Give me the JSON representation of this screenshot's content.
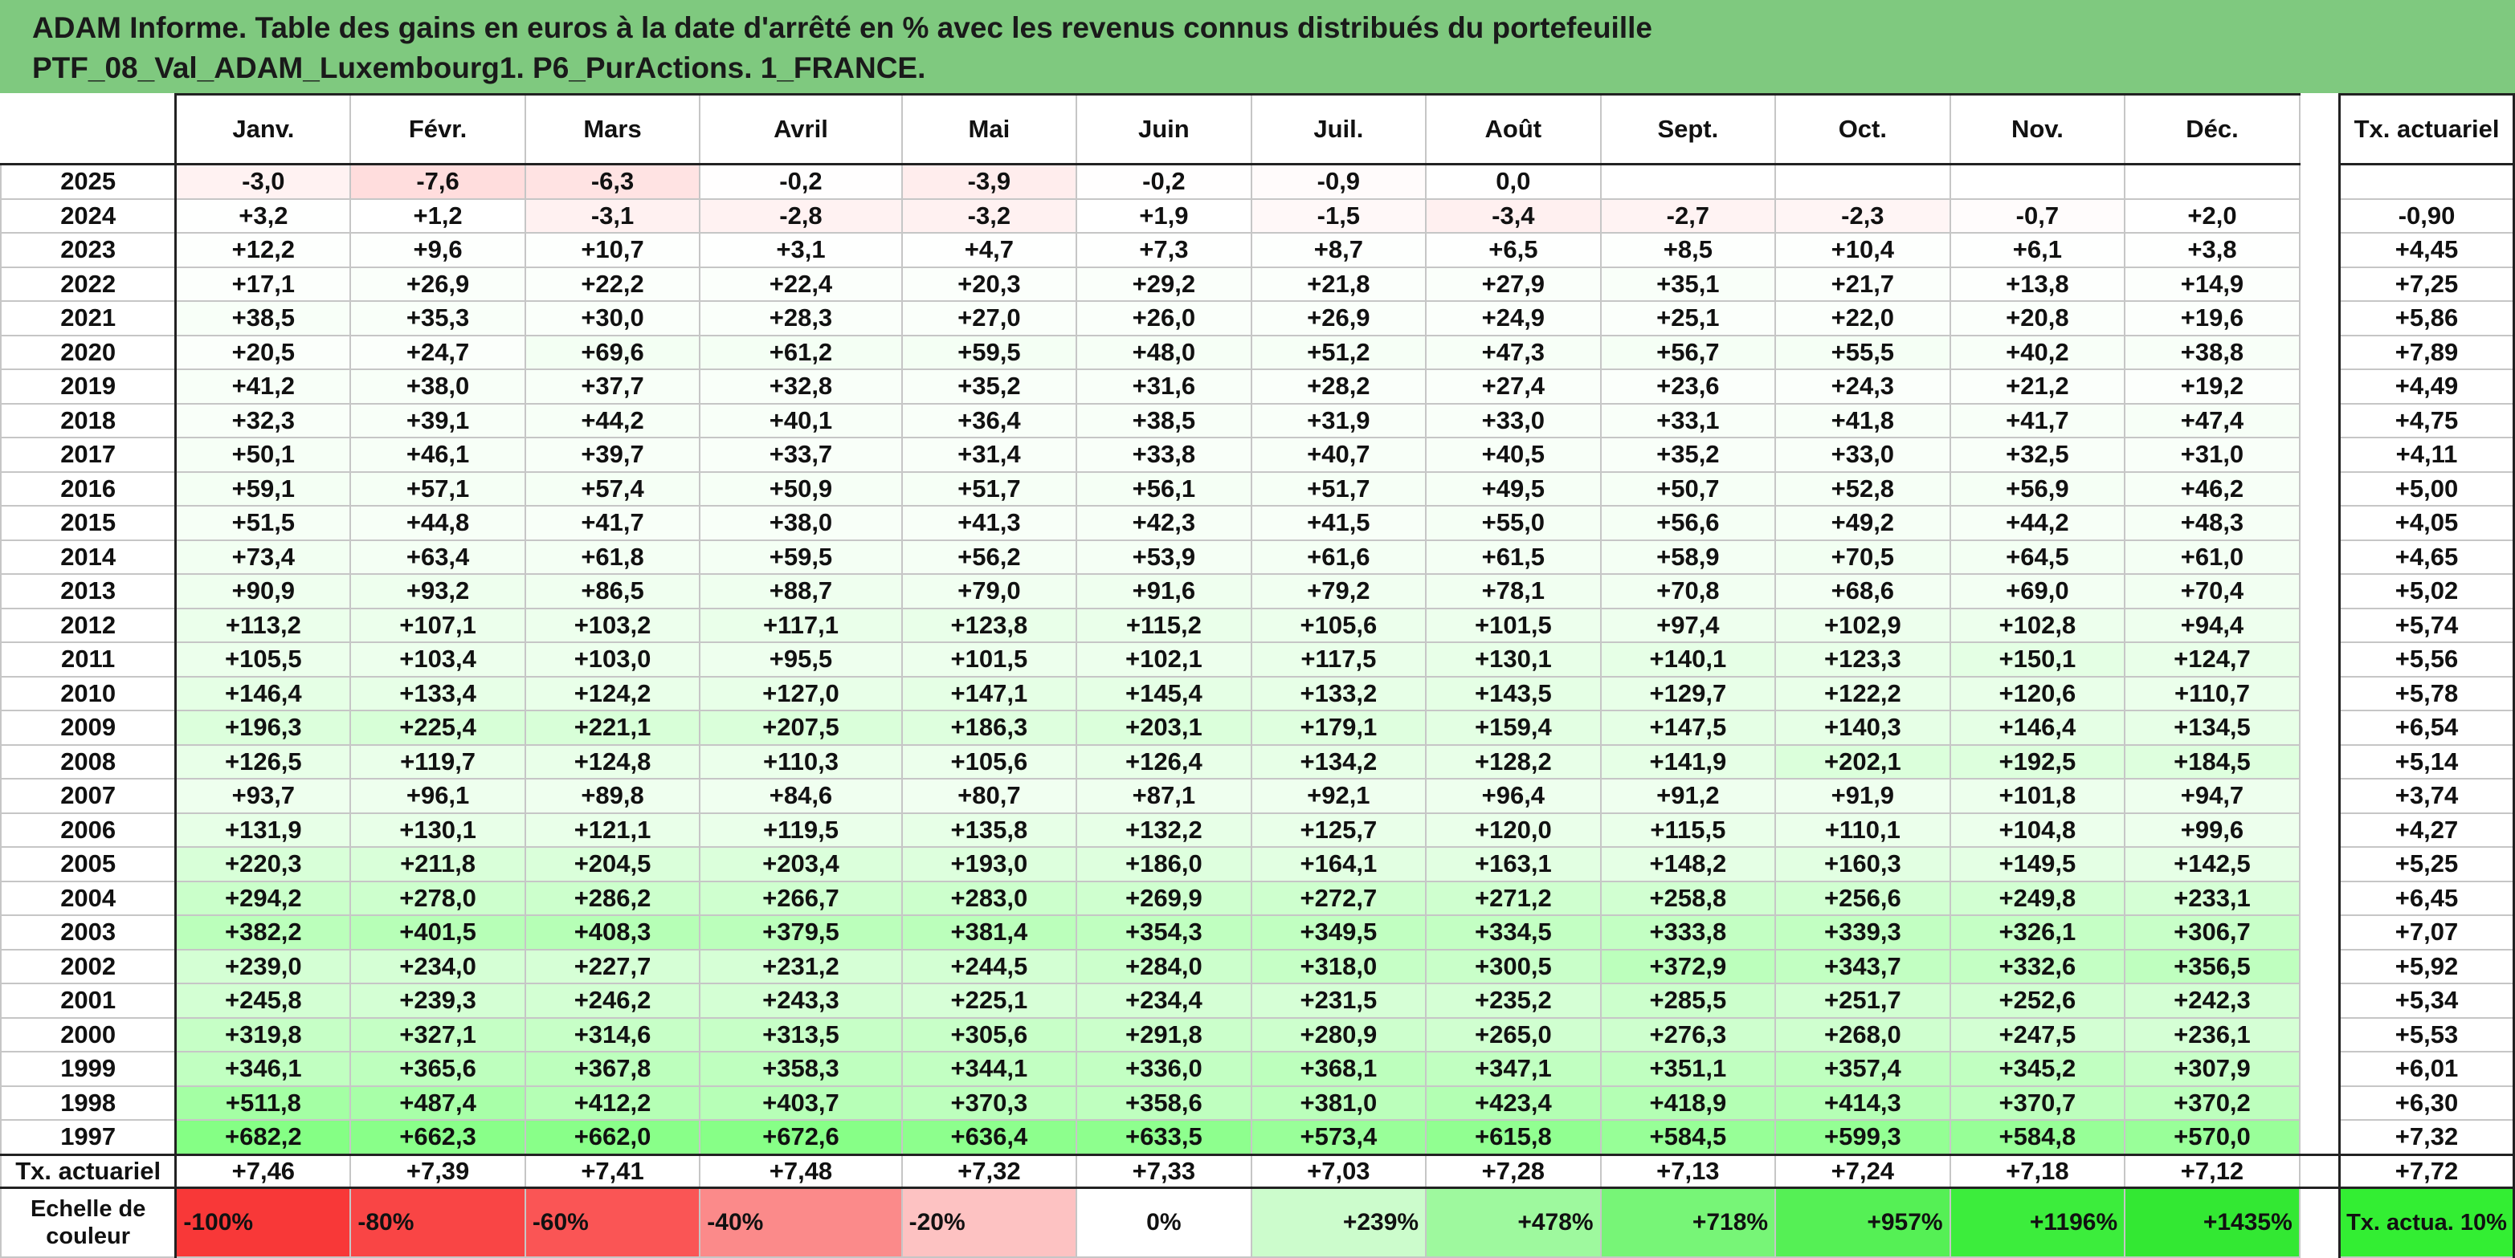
{
  "title": {
    "line1": "ADAM Informe. Table des gains en euros à la date d'arrêté en % avec les revenus connus distribués du portefeuille",
    "line2": "PTF_08_Val_ADAM_Luxembourg1. P6_PurActions. 1_FRANCE."
  },
  "header": {
    "months": [
      "Janv.",
      "Févr.",
      "Mars",
      "Avril",
      "Mai",
      "Juin",
      "Juil.",
      "Août",
      "Sept.",
      "Oct.",
      "Nov.",
      "Déc."
    ],
    "tx_label": "Tx. actuariel"
  },
  "rows": [
    {
      "year": "2025",
      "values": [
        "-3,0",
        "-7,6",
        "-6,3",
        "-0,2",
        "-3,9",
        "-0,2",
        "-0,9",
        "0,0",
        "",
        "",
        "",
        ""
      ],
      "tx": ""
    },
    {
      "year": "2024",
      "values": [
        "+3,2",
        "+1,2",
        "-3,1",
        "-2,8",
        "-3,2",
        "+1,9",
        "-1,5",
        "-3,4",
        "-2,7",
        "-2,3",
        "-0,7",
        "+2,0"
      ],
      "tx": "-0,90"
    },
    {
      "year": "2023",
      "values": [
        "+12,2",
        "+9,6",
        "+10,7",
        "+3,1",
        "+4,7",
        "+7,3",
        "+8,7",
        "+6,5",
        "+8,5",
        "+10,4",
        "+6,1",
        "+3,8"
      ],
      "tx": "+4,45"
    },
    {
      "year": "2022",
      "values": [
        "+17,1",
        "+26,9",
        "+22,2",
        "+22,4",
        "+20,3",
        "+29,2",
        "+21,8",
        "+27,9",
        "+35,1",
        "+21,7",
        "+13,8",
        "+14,9"
      ],
      "tx": "+7,25"
    },
    {
      "year": "2021",
      "values": [
        "+38,5",
        "+35,3",
        "+30,0",
        "+28,3",
        "+27,0",
        "+26,0",
        "+26,9",
        "+24,9",
        "+25,1",
        "+22,0",
        "+20,8",
        "+19,6"
      ],
      "tx": "+5,86"
    },
    {
      "year": "2020",
      "values": [
        "+20,5",
        "+24,7",
        "+69,6",
        "+61,2",
        "+59,5",
        "+48,0",
        "+51,2",
        "+47,3",
        "+56,7",
        "+55,5",
        "+40,2",
        "+38,8"
      ],
      "tx": "+7,89"
    },
    {
      "year": "2019",
      "values": [
        "+41,2",
        "+38,0",
        "+37,7",
        "+32,8",
        "+35,2",
        "+31,6",
        "+28,2",
        "+27,4",
        "+23,6",
        "+24,3",
        "+21,2",
        "+19,2"
      ],
      "tx": "+4,49"
    },
    {
      "year": "2018",
      "values": [
        "+32,3",
        "+39,1",
        "+44,2",
        "+40,1",
        "+36,4",
        "+38,5",
        "+31,9",
        "+33,0",
        "+33,1",
        "+41,8",
        "+41,7",
        "+47,4"
      ],
      "tx": "+4,75"
    },
    {
      "year": "2017",
      "values": [
        "+50,1",
        "+46,1",
        "+39,7",
        "+33,7",
        "+31,4",
        "+33,8",
        "+40,7",
        "+40,5",
        "+35,2",
        "+33,0",
        "+32,5",
        "+31,0"
      ],
      "tx": "+4,11"
    },
    {
      "year": "2016",
      "values": [
        "+59,1",
        "+57,1",
        "+57,4",
        "+50,9",
        "+51,7",
        "+56,1",
        "+51,7",
        "+49,5",
        "+50,7",
        "+52,8",
        "+56,9",
        "+46,2"
      ],
      "tx": "+5,00"
    },
    {
      "year": "2015",
      "values": [
        "+51,5",
        "+44,8",
        "+41,7",
        "+38,0",
        "+41,3",
        "+42,3",
        "+41,5",
        "+55,0",
        "+56,6",
        "+49,2",
        "+44,2",
        "+48,3"
      ],
      "tx": "+4,05"
    },
    {
      "year": "2014",
      "values": [
        "+73,4",
        "+63,4",
        "+61,8",
        "+59,5",
        "+56,2",
        "+53,9",
        "+61,6",
        "+61,5",
        "+58,9",
        "+70,5",
        "+64,5",
        "+61,0"
      ],
      "tx": "+4,65"
    },
    {
      "year": "2013",
      "values": [
        "+90,9",
        "+93,2",
        "+86,5",
        "+88,7",
        "+79,0",
        "+91,6",
        "+79,2",
        "+78,1",
        "+70,8",
        "+68,6",
        "+69,0",
        "+70,4"
      ],
      "tx": "+5,02"
    },
    {
      "year": "2012",
      "values": [
        "+113,2",
        "+107,1",
        "+103,2",
        "+117,1",
        "+123,8",
        "+115,2",
        "+105,6",
        "+101,5",
        "+97,4",
        "+102,9",
        "+102,8",
        "+94,4"
      ],
      "tx": "+5,74"
    },
    {
      "year": "2011",
      "values": [
        "+105,5",
        "+103,4",
        "+103,0",
        "+95,5",
        "+101,5",
        "+102,1",
        "+117,5",
        "+130,1",
        "+140,1",
        "+123,3",
        "+150,1",
        "+124,7"
      ],
      "tx": "+5,56"
    },
    {
      "year": "2010",
      "values": [
        "+146,4",
        "+133,4",
        "+124,2",
        "+127,0",
        "+147,1",
        "+145,4",
        "+133,2",
        "+143,5",
        "+129,7",
        "+122,2",
        "+120,6",
        "+110,7"
      ],
      "tx": "+5,78"
    },
    {
      "year": "2009",
      "values": [
        "+196,3",
        "+225,4",
        "+221,1",
        "+207,5",
        "+186,3",
        "+203,1",
        "+179,1",
        "+159,4",
        "+147,5",
        "+140,3",
        "+146,4",
        "+134,5"
      ],
      "tx": "+6,54"
    },
    {
      "year": "2008",
      "values": [
        "+126,5",
        "+119,7",
        "+124,8",
        "+110,3",
        "+105,6",
        "+126,4",
        "+134,2",
        "+128,2",
        "+141,9",
        "+202,1",
        "+192,5",
        "+184,5"
      ],
      "tx": "+5,14"
    },
    {
      "year": "2007",
      "values": [
        "+93,7",
        "+96,1",
        "+89,8",
        "+84,6",
        "+80,7",
        "+87,1",
        "+92,1",
        "+96,4",
        "+91,2",
        "+91,9",
        "+101,8",
        "+94,7"
      ],
      "tx": "+3,74"
    },
    {
      "year": "2006",
      "values": [
        "+131,9",
        "+130,1",
        "+121,1",
        "+119,5",
        "+135,8",
        "+132,2",
        "+125,7",
        "+120,0",
        "+115,5",
        "+110,1",
        "+104,8",
        "+99,6"
      ],
      "tx": "+4,27"
    },
    {
      "year": "2005",
      "values": [
        "+220,3",
        "+211,8",
        "+204,5",
        "+203,4",
        "+193,0",
        "+186,0",
        "+164,1",
        "+163,1",
        "+148,2",
        "+160,3",
        "+149,5",
        "+142,5"
      ],
      "tx": "+5,25"
    },
    {
      "year": "2004",
      "values": [
        "+294,2",
        "+278,0",
        "+286,2",
        "+266,7",
        "+283,0",
        "+269,9",
        "+272,7",
        "+271,2",
        "+258,8",
        "+256,6",
        "+249,8",
        "+233,1"
      ],
      "tx": "+6,45"
    },
    {
      "year": "2003",
      "values": [
        "+382,2",
        "+401,5",
        "+408,3",
        "+379,5",
        "+381,4",
        "+354,3",
        "+349,5",
        "+334,5",
        "+333,8",
        "+339,3",
        "+326,1",
        "+306,7"
      ],
      "tx": "+7,07"
    },
    {
      "year": "2002",
      "values": [
        "+239,0",
        "+234,0",
        "+227,7",
        "+231,2",
        "+244,5",
        "+284,0",
        "+318,0",
        "+300,5",
        "+372,9",
        "+343,7",
        "+332,6",
        "+356,5"
      ],
      "tx": "+5,92"
    },
    {
      "year": "2001",
      "values": [
        "+245,8",
        "+239,3",
        "+246,2",
        "+243,3",
        "+225,1",
        "+234,4",
        "+231,5",
        "+235,2",
        "+285,5",
        "+251,7",
        "+252,6",
        "+242,3"
      ],
      "tx": "+5,34"
    },
    {
      "year": "2000",
      "values": [
        "+319,8",
        "+327,1",
        "+314,6",
        "+313,5",
        "+305,6",
        "+291,8",
        "+280,9",
        "+265,0",
        "+276,3",
        "+268,0",
        "+247,5",
        "+236,1"
      ],
      "tx": "+5,53"
    },
    {
      "year": "1999",
      "values": [
        "+346,1",
        "+365,6",
        "+367,8",
        "+358,3",
        "+344,1",
        "+336,0",
        "+368,1",
        "+347,1",
        "+351,1",
        "+357,4",
        "+345,2",
        "+307,9"
      ],
      "tx": "+6,01"
    },
    {
      "year": "1998",
      "values": [
        "+511,8",
        "+487,4",
        "+412,2",
        "+403,7",
        "+370,3",
        "+358,6",
        "+381,0",
        "+423,4",
        "+418,9",
        "+414,3",
        "+370,7",
        "+370,2"
      ],
      "tx": "+6,30"
    },
    {
      "year": "1997",
      "values": [
        "+682,2",
        "+662,3",
        "+662,0",
        "+672,6",
        "+636,4",
        "+633,5",
        "+573,4",
        "+615,8",
        "+584,5",
        "+599,3",
        "+584,8",
        "+570,0"
      ],
      "tx": "+7,32"
    }
  ],
  "tx_row": {
    "label": "Tx. actuariel",
    "values": [
      "+7,46",
      "+7,39",
      "+7,41",
      "+7,48",
      "+7,32",
      "+7,33",
      "+7,03",
      "+7,28",
      "+7,13",
      "+7,24",
      "+7,18",
      "+7,12"
    ],
    "total": "+7,72"
  },
  "scale_row": {
    "label": "Echelle de couleur",
    "items": [
      {
        "text": "-100%",
        "color": "#f83838"
      },
      {
        "text": "-80%",
        "color": "#f94545"
      },
      {
        "text": "-60%",
        "color": "#fa5555"
      },
      {
        "text": "-40%",
        "color": "#fb8a8a"
      },
      {
        "text": "-20%",
        "color": "#fdc2c2"
      },
      {
        "text": "0%",
        "color": "#ffffff"
      },
      {
        "text": "+239%",
        "color": "#ccfccc"
      },
      {
        "text": "+478%",
        "color": "#9ef99e"
      },
      {
        "text": "+718%",
        "color": "#77f577"
      },
      {
        "text": "+957%",
        "color": "#55f055"
      },
      {
        "text": "+1196%",
        "color": "#3ced3c"
      },
      {
        "text": "+1435%",
        "color": "#33e833"
      }
    ],
    "tx_label": "Tx. actua. 10%",
    "tx_color": "#33ee33"
  }
}
